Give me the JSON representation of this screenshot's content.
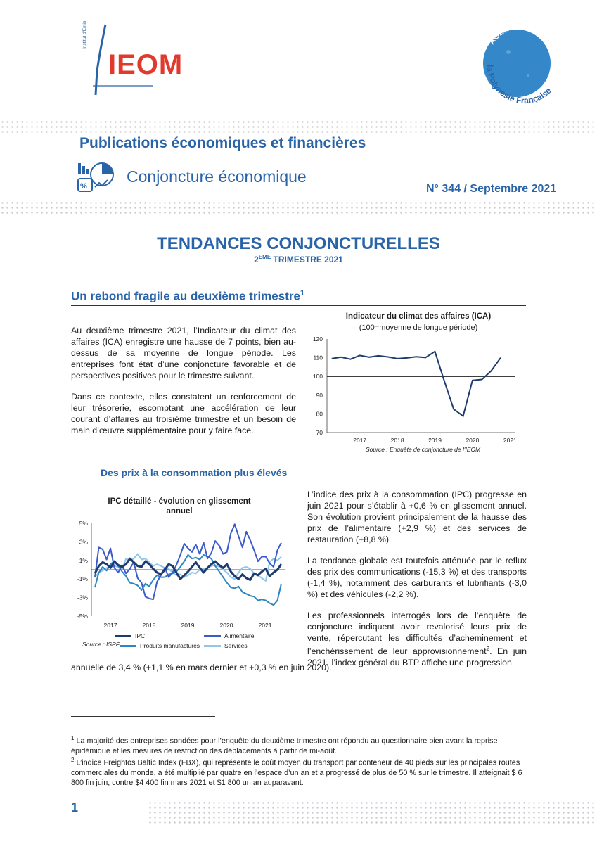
{
  "header": {
    "logo_text": "IEOM",
    "logo_vertical": "Institut d'Émission d'Outre-Mer",
    "badge_top": "AGENCE DE",
    "badge_bottom": "la Polynésie Française",
    "publication_title": "Publications économiques et financières",
    "section": "Conjoncture économique",
    "issue": "N° 344 / Septembre 2021"
  },
  "titles": {
    "main": "TENDANCES CONJONCTURELLES",
    "sub_prefix": "2",
    "sub_sup": "EME",
    "sub_rest": " TRIMESTRE 2021"
  },
  "section1": {
    "heading": "Un rebond fragile au deuxième trimestre",
    "heading_sup": "1",
    "paragraphs": [
      "Au deuxième trimestre 2021, l’Indicateur du climat des affaires (ICA) enregistre une hausse de 7 points, bien au-dessus de sa moyenne de longue période. Les entreprises font état d’une conjoncture favorable et de perspectives positives pour le trimestre suivant.",
      "Dans ce contexte, elles constatent un renforcement de leur trésorerie, escomptant une accélération de leur courant d’affaires au troisième trimestre et un besoin de main d’œuvre supplémentaire pour y faire face."
    ]
  },
  "section2": {
    "heading": "Des prix à la consommation plus élevés",
    "paragraphs": [
      "L’indice des prix à la consommation (IPC) progresse en juin 2021 pour s’établir à +0,6 % en glissement annuel. Son évolution provient principalement de la hausse des prix de l’alimentaire (+2,9 %) et des services de restauration (+8,8 %).",
      "La tendance globale est toutefois atténuée par le reflux des prix des communications (-15,3 %) et des transports (-1,4 %), notamment des carburants et lubrifiants (-3,0 %) et des véhicules (-2,2 %)."
    ],
    "para3_part1": "Les professionnels interrogés lors de l’enquête de conjoncture indiquent avoir revalorisé leurs prix de vente, répercutant les difficultés d’acheminement et l’enchérissement de leur approvisionnement",
    "para3_sup": "2",
    "para3_part2": ". En juin 2021, l’index général du BTP affiche une progression",
    "para3_tail": "annuelle de 3,4 % (+1,1 % en mars dernier et +0,3 % en juin 2020)."
  },
  "footnotes": [
    {
      "num": "1",
      "text": "La majorité des entreprises sondées pour l’enquête du deuxième trimestre ont répondu au questionnaire bien avant la reprise épidémique et les mesures de restriction des déplacements à partir de mi-août."
    },
    {
      "num": "2",
      "text": "L’indice Freightos Baltic Index (FBX), qui représente le coût moyen du transport par conteneur de 40 pieds sur les principales routes commerciales du monde, a été multiplié par quatre en l’espace d’un an et a progressé de plus de 50 % sur le trimestre. Il atteignait $ 6 800 fin juin, contre $4 400 fin mars 2021 et $1 800 un an auparavant."
    }
  ],
  "page_number": "1",
  "colors": {
    "brand_blue": "#2a64a8",
    "ipc": "#1f3b6e",
    "alimentaire": "#3a5bc9",
    "produits": "#2e86c1",
    "services": "#8fc6ea"
  },
  "chart_data": [
    {
      "type": "line",
      "title": "Indicateur du climat des affaires (ICA)",
      "subtitle": "(100=moyenne de longue période)",
      "source": "Source : Enquête de conjoncture de l'IEOM",
      "ylim": [
        70,
        120
      ],
      "yticks": [
        "70",
        "80",
        "90",
        "100",
        "110",
        "120"
      ],
      "xtick_labels": [
        "2017",
        "2018",
        "2019",
        "2020",
        "2021"
      ],
      "x": [
        "2016T3",
        "2016T4",
        "2017T1",
        "2017T2",
        "2017T3",
        "2017T4",
        "2018T1",
        "2018T2",
        "2018T3",
        "2018T4",
        "2019T1",
        "2019T2",
        "2019T3",
        "2019T4",
        "2020T1",
        "2020T2",
        "2020T3",
        "2020T4",
        "2021T1",
        "2021T2"
      ],
      "series": [
        {
          "values": [
            109.5,
            110.3,
            109.2,
            111.2,
            110.3,
            111.0,
            110.4,
            109.5,
            109.9,
            110.5,
            110.1,
            113.3,
            97.5,
            82.5,
            78.8,
            97.9,
            98.4,
            103.0,
            110.0,
            null
          ]
        }
      ],
      "reference_line": 100
    },
    {
      "type": "line",
      "title": "IPC détaillé - évolution en glissement annuel",
      "source": "Source : ISPF",
      "ylim": [
        -5,
        5
      ],
      "yticks": [
        "-5%",
        "-3%",
        "-1%",
        "1%",
        "3%",
        "5%"
      ],
      "xtick_labels": [
        "2017",
        "2018",
        "2019",
        "2020",
        "2021"
      ],
      "series": [
        {
          "name": "IPC",
          "values": [
            -0.4,
            0.4,
            0.8,
            0.6,
            0.2,
            0.9,
            0.5,
            0.3,
            0.6,
            1.2,
            0.8,
            0.4,
            0.3,
            0.9,
            0.6,
            0.1,
            -0.3,
            -0.5,
            0.0,
            0.6,
            0.4,
            -0.3,
            -1.0,
            -0.6,
            -0.2,
            0.3,
            0.8,
            0.2,
            -0.3,
            0.2,
            0.6,
            0.9,
            0.5,
            0.2,
            0.6,
            -0.2,
            -0.7,
            -1.0,
            -0.5,
            -0.9,
            -1.1,
            -0.4,
            -0.6,
            -0.2,
            0.1,
            -0.7,
            -0.3,
            0.0,
            0.6
          ]
        },
        {
          "name": "Alimentaire",
          "values": [
            -0.8,
            2.4,
            2.2,
            1.1,
            2.3,
            0.2,
            -0.3,
            0.5,
            -0.4,
            0.1,
            0.8,
            -0.9,
            -1.4,
            -2.9,
            -3.1,
            -3.2,
            -1.3,
            -0.6,
            0.2,
            -0.8,
            -0.3,
            0.5,
            1.6,
            2.8,
            2.3,
            1.9,
            2.7,
            1.7,
            2.9,
            1.2,
            1.8,
            3.1,
            2.6,
            1.7,
            1.9,
            3.9,
            4.9,
            3.6,
            2.4,
            4.1,
            3.2,
            2.1,
            0.9,
            1.4,
            1.4,
            0.7,
            0.3,
            2.1,
            2.9
          ]
        },
        {
          "name": "Produits manufacturés",
          "values": [
            -1.9,
            -0.3,
            0.3,
            -0.1,
            0.6,
            0.9,
            0.4,
            -0.2,
            -0.7,
            -1.4,
            -1.5,
            -1.7,
            -2.2,
            -1.5,
            -1.8,
            -1.1,
            -0.6,
            -0.8,
            -0.8,
            -0.5,
            -0.4,
            -0.2,
            0.3,
            0.9,
            1.6,
            1.2,
            1.3,
            1.1,
            1.6,
            1.4,
            1.2,
            0.4,
            -0.2,
            -0.8,
            -1.4,
            -1.9,
            -2.0,
            -1.8,
            -2.4,
            -2.6,
            -2.8,
            -2.9,
            -3.3,
            -3.2,
            -3.3,
            -3.6,
            -3.8,
            -3.3,
            -1.5
          ]
        },
        {
          "name": "Services",
          "values": [
            -0.8,
            -0.3,
            -0.1,
            0.2,
            0.3,
            0.4,
            0.3,
            0.0,
            1.2,
            1.0,
            1.2,
            1.7,
            1.1,
            1.2,
            0.8,
            0.4,
            0.6,
            0.4,
            0.2,
            0.1,
            -0.3,
            -0.6,
            -0.5,
            -0.8,
            -0.6,
            -0.3,
            -0.4,
            0.0,
            0.1,
            0.2,
            0.4,
            0.5,
            0.3,
            0.0,
            -0.3,
            -0.8,
            -1.0,
            -0.3,
            0.2,
            0.3,
            0.1,
            -0.4,
            -0.6,
            -0.9,
            -1.2,
            0.8,
            1.2,
            1.0,
            1.4
          ]
        }
      ]
    }
  ]
}
